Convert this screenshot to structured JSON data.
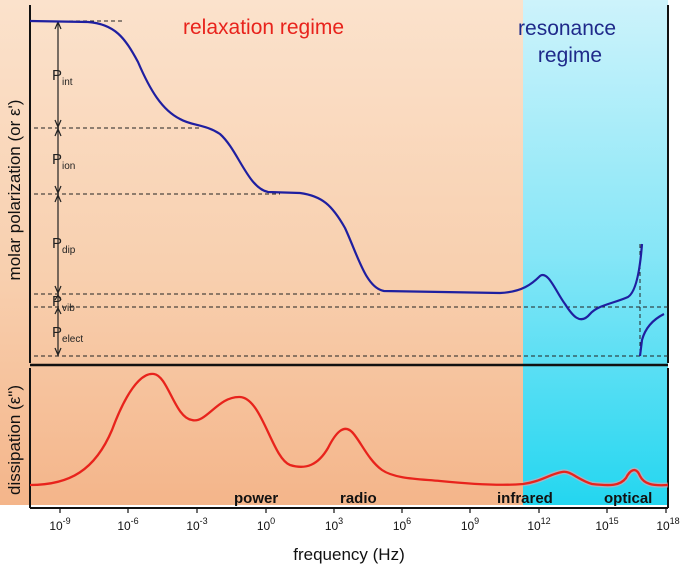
{
  "title_relaxation": "relaxation regime",
  "title_resonance": "resonance regime",
  "title_resonance_lines": [
    "resonance",
    "regime"
  ],
  "y_label_top": "molar polarization (or ε')",
  "y_label_bottom": "dissipation (ε\")",
  "x_label": "frequency (Hz)",
  "components": [
    {
      "base": "P",
      "sub": "int"
    },
    {
      "base": "P",
      "sub": "ion"
    },
    {
      "base": "P",
      "sub": "dip"
    },
    {
      "base": "P",
      "sub": "vib"
    },
    {
      "base": "P",
      "sub": "elect"
    }
  ],
  "x_ticks": [
    {
      "base": "10",
      "exp": "-9"
    },
    {
      "base": "10",
      "exp": "-6"
    },
    {
      "base": "10",
      "exp": "-3"
    },
    {
      "base": "10",
      "exp": "0"
    },
    {
      "base": "10",
      "exp": "3"
    },
    {
      "base": "10",
      "exp": "6"
    },
    {
      "base": "10",
      "exp": "9"
    },
    {
      "base": "10",
      "exp": "12"
    },
    {
      "base": "10",
      "exp": "15"
    },
    {
      "base": "10",
      "exp": "18"
    }
  ],
  "band_labels": [
    "power",
    "radio",
    "infrared",
    "optical"
  ],
  "colors": {
    "relaxation_text": "#e8231c",
    "resonance_text": "#1f2a8a",
    "polarization_curve": "#1f1fa0",
    "dissipation_curve": "#e8231c",
    "relaxation_bg": "#f8c9a8",
    "resonance_bg": "#3fd8f2"
  }
}
